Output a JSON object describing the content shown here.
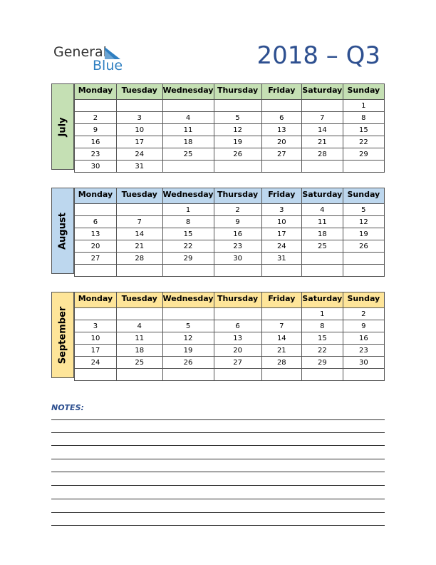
{
  "logo": {
    "word1": "General",
    "word2": "Blue"
  },
  "title": "2018 – Q3",
  "weekdays": [
    "Monday",
    "Tuesday",
    "Wednesday",
    "Thursday",
    "Friday",
    "Saturday",
    "Sunday"
  ],
  "months": [
    {
      "name": "July",
      "color": "#c5e0b4",
      "weeks": [
        [
          null,
          null,
          null,
          null,
          null,
          null,
          1
        ],
        [
          2,
          3,
          4,
          5,
          6,
          7,
          8
        ],
        [
          9,
          10,
          11,
          12,
          13,
          14,
          15
        ],
        [
          16,
          17,
          18,
          19,
          20,
          21,
          22
        ],
        [
          23,
          24,
          25,
          26,
          27,
          28,
          29
        ],
        [
          30,
          31,
          null,
          null,
          null,
          null,
          null
        ]
      ]
    },
    {
      "name": "August",
      "color": "#bdd7ee",
      "weeks": [
        [
          null,
          null,
          1,
          2,
          3,
          4,
          5
        ],
        [
          6,
          7,
          8,
          9,
          10,
          11,
          12
        ],
        [
          13,
          14,
          15,
          16,
          17,
          18,
          19
        ],
        [
          20,
          21,
          22,
          23,
          24,
          25,
          26
        ],
        [
          27,
          28,
          29,
          30,
          31,
          null,
          null
        ],
        [
          null,
          null,
          null,
          null,
          null,
          null,
          null
        ]
      ]
    },
    {
      "name": "September",
      "color": "#fee599",
      "weeks": [
        [
          null,
          null,
          null,
          null,
          null,
          1,
          2
        ],
        [
          3,
          4,
          5,
          6,
          7,
          8,
          9
        ],
        [
          10,
          11,
          12,
          13,
          14,
          15,
          16
        ],
        [
          17,
          18,
          19,
          20,
          21,
          22,
          23
        ],
        [
          24,
          25,
          26,
          27,
          28,
          29,
          30
        ],
        [
          null,
          null,
          null,
          null,
          null,
          null,
          null
        ]
      ]
    }
  ],
  "notes_label": "NOTES:"
}
